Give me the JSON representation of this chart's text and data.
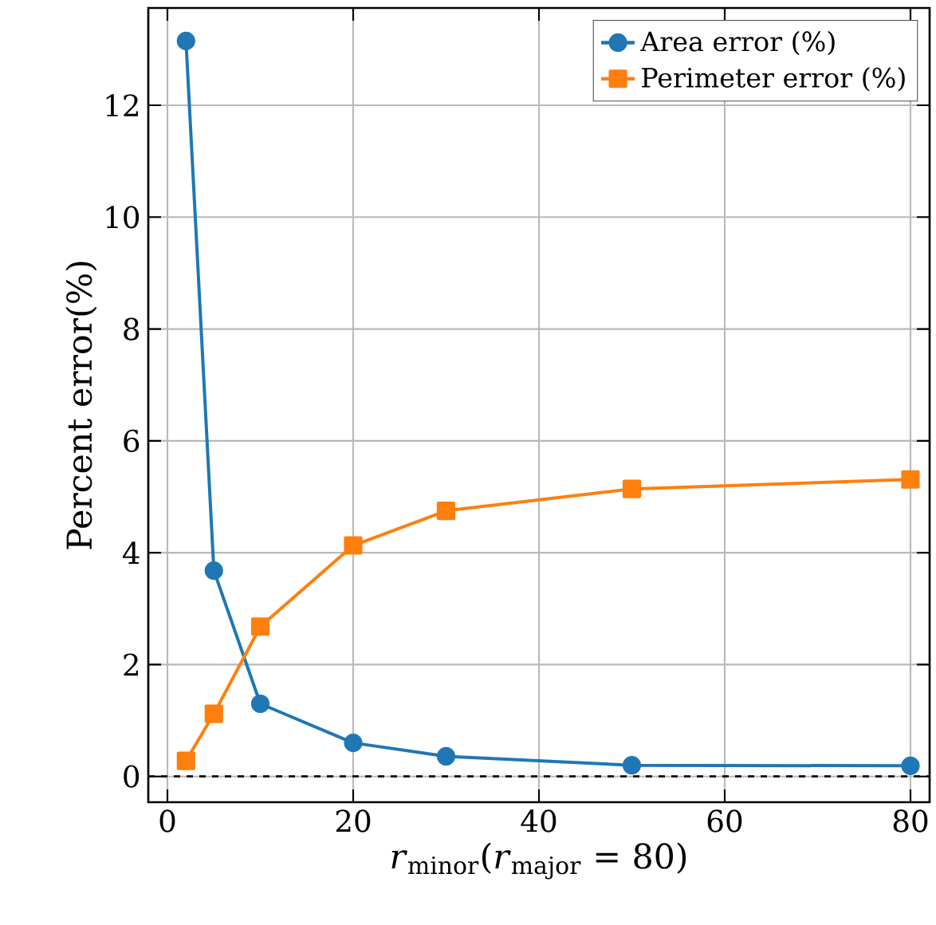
{
  "chart_data": {
    "type": "line",
    "xlabel": "*r*$_{minor}$(*r*$_{major}$ = 80)",
    "ylabel": "Percent error(%)",
    "series": [
      {
        "name": "Area error (%)",
        "color": "#1f77b4",
        "marker": "circle",
        "x": [
          2,
          5,
          10,
          20,
          30,
          50,
          80
        ],
        "values": [
          13.15,
          3.68,
          1.3,
          0.6,
          0.36,
          0.2,
          0.19
        ]
      },
      {
        "name": "Perimeter error (%)",
        "color": "#ff7f0e",
        "marker": "square",
        "x": [
          2,
          5,
          10,
          20,
          30,
          50,
          80
        ],
        "values": [
          0.28,
          1.12,
          2.68,
          4.13,
          4.75,
          5.14,
          5.31
        ]
      }
    ],
    "xlim": [
      -2.06,
      82.06
    ],
    "ylim": [
      -0.46,
      13.74
    ],
    "xticks": [
      0,
      20,
      40,
      60,
      80
    ],
    "yticks": [
      0,
      2,
      4,
      6,
      8,
      10,
      12
    ],
    "ref_lines": [
      {
        "axis": "y",
        "value": 0,
        "color": "#000000",
        "line_style": "dashed"
      }
    ],
    "grid": true,
    "legend": "top right",
    "line_style": "solid"
  }
}
